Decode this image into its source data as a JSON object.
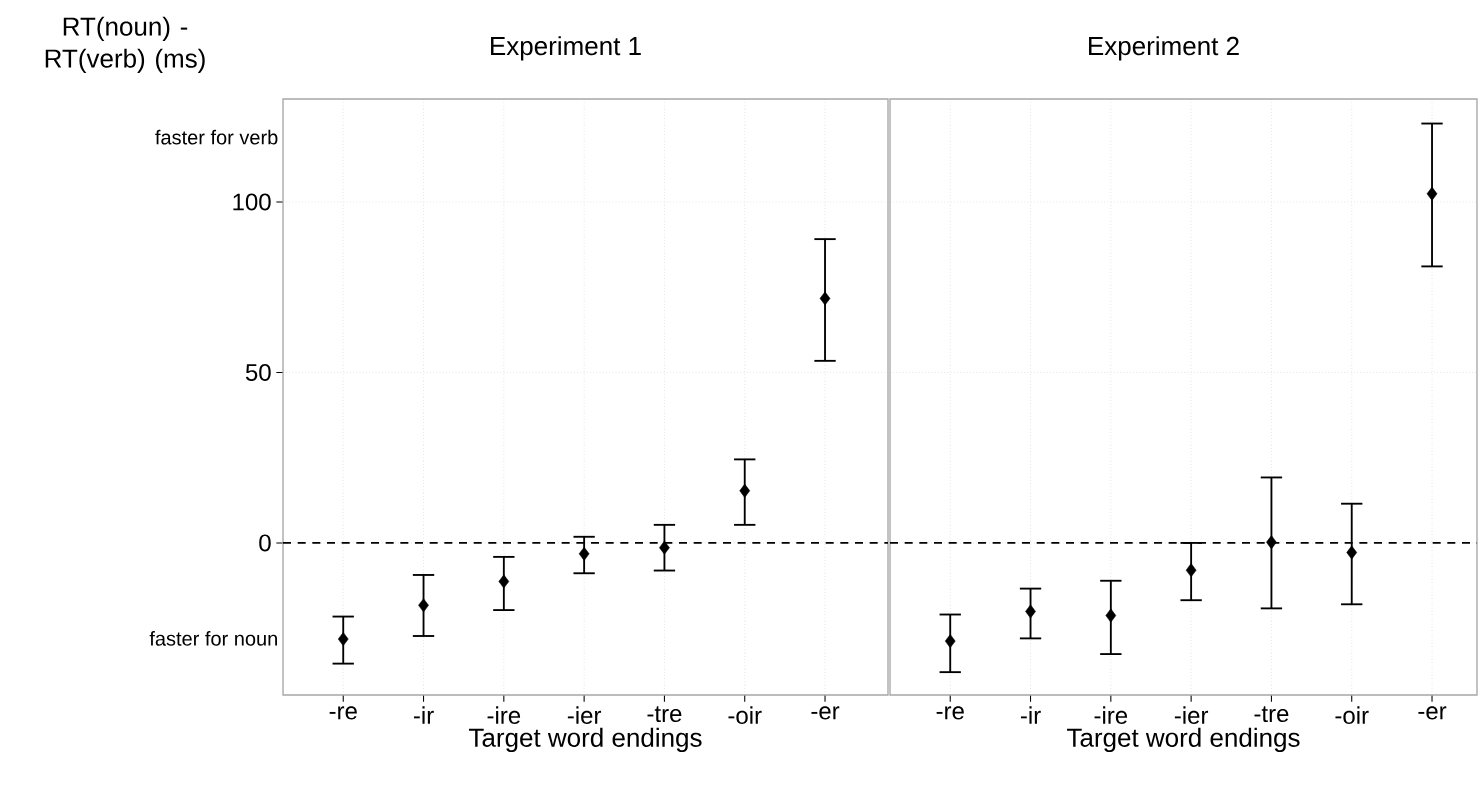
{
  "chart_data": [
    {
      "type": "scatter",
      "title": "Experiment 1",
      "xlabel": "Target word endings",
      "ylabel": "RT(noun) - RT(verb) (ms)",
      "categories": [
        "-re",
        "-ir",
        "-ire",
        "-ier",
        "-tre",
        "-oir",
        "-er"
      ],
      "values": [
        -28.2,
        -18.3,
        -11.3,
        -3.2,
        -1.4,
        15.3,
        71.7
      ],
      "errors": [
        [
          -35.4,
          -21.6
        ],
        [
          -27.3,
          -9.4
        ],
        [
          -19.7,
          -4.1
        ],
        [
          -8.9,
          1.8
        ],
        [
          -8.1,
          5.3
        ],
        [
          5.3,
          24.5
        ],
        [
          53.4,
          89.1
        ]
      ],
      "color": "#000000",
      "marker": "diamond",
      "ylim": [
        -44.6,
        130.2
      ],
      "yticks": [
        {
          "value": -28,
          "label": "faster for noun"
        },
        0,
        50,
        100,
        {
          "value": 119,
          "label": "faster for verb"
        }
      ],
      "grid": true,
      "ref_lines": [
        {
          "axis": "y",
          "value": 0,
          "line_style": "dashed",
          "color": "#000000"
        }
      ]
    },
    {
      "type": "scatter",
      "title": "Experiment 2",
      "xlabel": "Target word endings",
      "categories": [
        "-re",
        "-ir",
        "-ire",
        "-ier",
        "-tre",
        "-oir",
        "-er"
      ],
      "values": [
        -28.8,
        -20.1,
        -21.3,
        -8.0,
        0.2,
        -2.8,
        102.4
      ],
      "errors": [
        [
          -37.9,
          -21.0
        ],
        [
          -28.0,
          -13.4
        ],
        [
          -32.6,
          -11.1
        ],
        [
          -16.8,
          0
        ],
        [
          -19.2,
          19.2
        ],
        [
          -18.0,
          11.5
        ],
        [
          81.1,
          123.0
        ]
      ],
      "color": "#000000",
      "marker": "diamond",
      "ylim": [
        -44.6,
        130.2
      ],
      "yticks": [
        0,
        50,
        100
      ],
      "grid": true,
      "tick_labels": "x",
      "ref_lines": [
        {
          "axis": "y",
          "value": 0,
          "line_style": "dashed",
          "color": "#000000"
        }
      ]
    }
  ]
}
